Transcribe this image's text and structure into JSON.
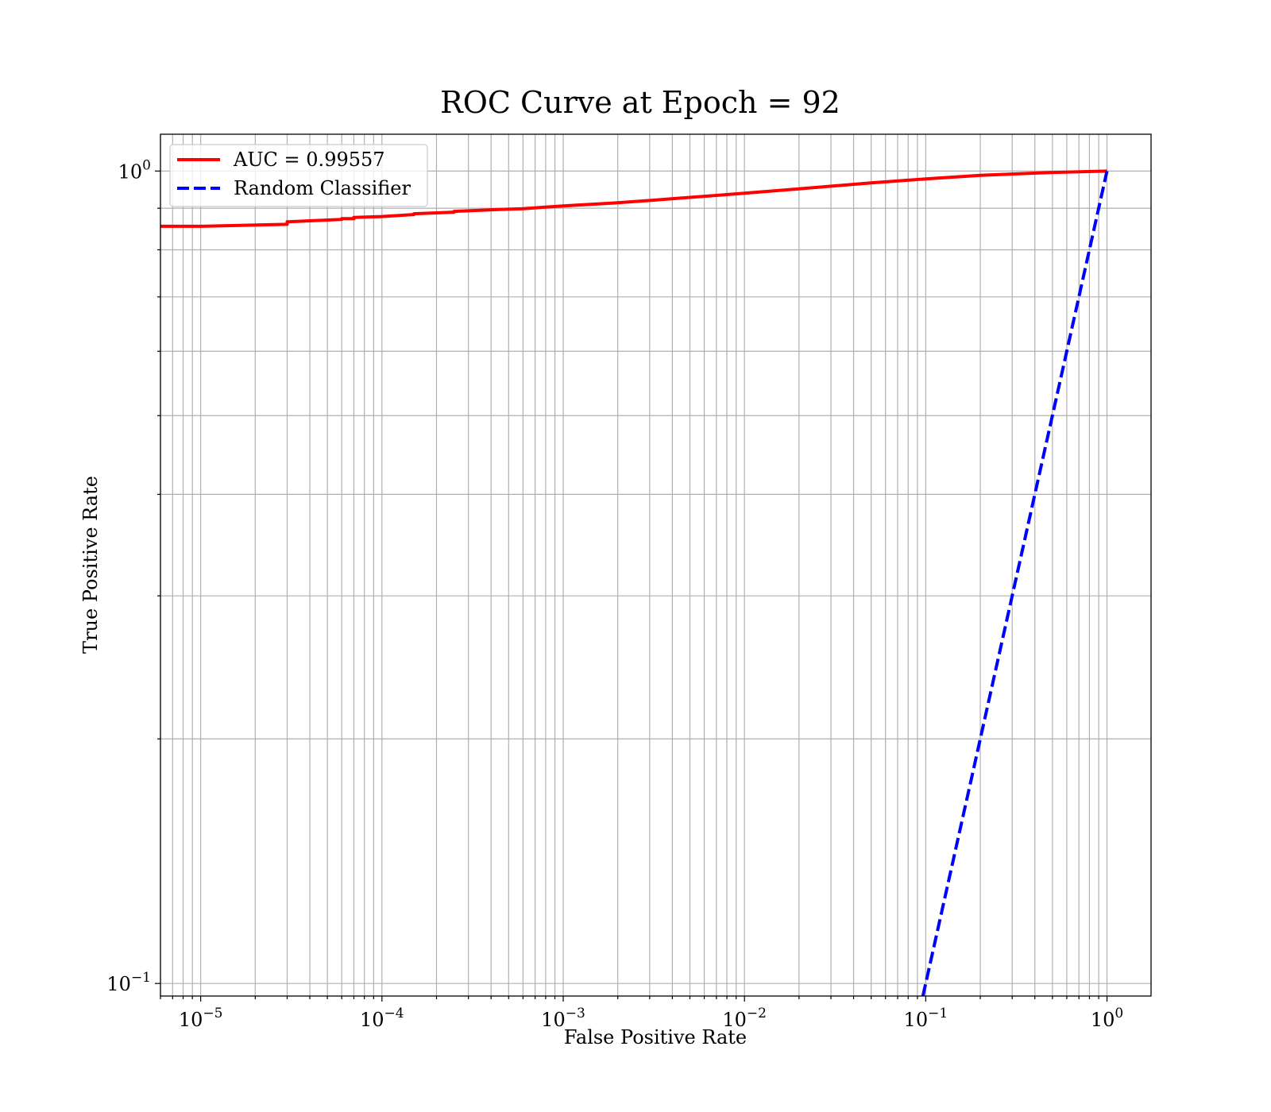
{
  "chart_data": {
    "type": "line",
    "title": "ROC Curve at Epoch = 92",
    "xlabel": "False Positive Rate",
    "ylabel": "True Positive Rate",
    "xscale": "log",
    "yscale": "log",
    "xlim": [
      6e-06,
      1.75
    ],
    "ylim": [
      0.0965,
      1.11
    ],
    "grid": true,
    "grid_minor": true,
    "legend_position": "upper-left",
    "x_ticks": [
      {
        "value": 1e-05,
        "base": "10",
        "exp": "−5"
      },
      {
        "value": 0.0001,
        "base": "10",
        "exp": "−4"
      },
      {
        "value": 0.001,
        "base": "10",
        "exp": "−3"
      },
      {
        "value": 0.01,
        "base": "10",
        "exp": "−2"
      },
      {
        "value": 0.1,
        "base": "10",
        "exp": "−1"
      },
      {
        "value": 1,
        "base": "10",
        "exp": "0"
      }
    ],
    "y_ticks": [
      {
        "value": 0.1,
        "base": "10",
        "exp": "−1"
      },
      {
        "value": 1,
        "base": "10",
        "exp": "0"
      }
    ],
    "series": [
      {
        "name": "AUC = 0.99557",
        "color": "#ff0000",
        "style": "solid",
        "x": [
          6e-06,
          1e-05,
          3e-05,
          3e-05,
          6e-05,
          6e-05,
          7e-05,
          7e-05,
          0.0001,
          0.00015,
          0.00015,
          0.00025,
          0.00025,
          0.0004,
          0.0006,
          0.0008,
          0.001,
          0.002,
          0.003,
          0.005,
          0.01,
          0.02,
          0.05,
          0.1,
          0.2,
          0.5,
          1.0
        ],
        "y": [
          0.855,
          0.855,
          0.86,
          0.866,
          0.872,
          0.874,
          0.874,
          0.877,
          0.879,
          0.884,
          0.886,
          0.89,
          0.892,
          0.896,
          0.899,
          0.903,
          0.906,
          0.914,
          0.92,
          0.928,
          0.939,
          0.951,
          0.967,
          0.978,
          0.988,
          0.996,
          1.0
        ]
      },
      {
        "name": "Random Classifier",
        "color": "#0000ff",
        "style": "dashed",
        "x": [
          0.0965,
          1.0
        ],
        "y": [
          0.0965,
          1.0
        ]
      }
    ]
  }
}
